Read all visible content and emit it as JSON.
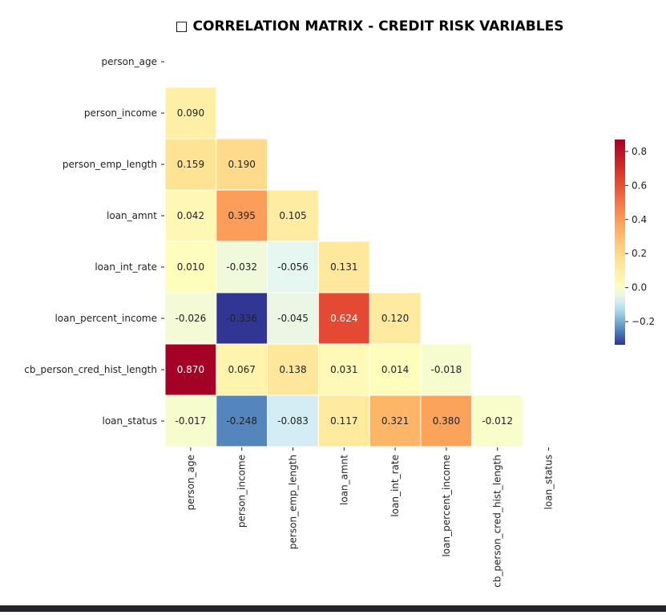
{
  "chart_data": {
    "type": "heatmap",
    "title": "□ CORRELATION MATRIX - CREDIT RISK VARIABLES",
    "variables": [
      "person_age",
      "person_income",
      "person_emp_length",
      "loan_amnt",
      "loan_int_rate",
      "loan_percent_income",
      "cb_person_cred_hist_length",
      "loan_status"
    ],
    "mask": "upper-triangle-including-diagonal",
    "values": [
      [
        null,
        null,
        null,
        null,
        null,
        null,
        null,
        null
      ],
      [
        0.09,
        null,
        null,
        null,
        null,
        null,
        null,
        null
      ],
      [
        0.159,
        0.19,
        null,
        null,
        null,
        null,
        null,
        null
      ],
      [
        0.042,
        0.395,
        0.105,
        null,
        null,
        null,
        null,
        null
      ],
      [
        0.01,
        -0.032,
        -0.056,
        0.131,
        null,
        null,
        null,
        null
      ],
      [
        -0.026,
        -0.336,
        -0.045,
        0.624,
        0.12,
        null,
        null,
        null
      ],
      [
        0.87,
        0.067,
        0.138,
        0.031,
        0.014,
        -0.018,
        null,
        null
      ],
      [
        -0.017,
        -0.248,
        -0.083,
        0.117,
        0.321,
        0.38,
        -0.012,
        null
      ]
    ],
    "value_labels": [
      [
        null,
        null,
        null,
        null,
        null,
        null,
        null,
        null
      ],
      [
        "0.090",
        null,
        null,
        null,
        null,
        null,
        null,
        null
      ],
      [
        "0.159",
        "0.190",
        null,
        null,
        null,
        null,
        null,
        null
      ],
      [
        "0.042",
        "0.395",
        "0.105",
        null,
        null,
        null,
        null,
        null
      ],
      [
        "0.010",
        "-0.032",
        "-0.056",
        "0.131",
        null,
        null,
        null,
        null
      ],
      [
        "-0.026",
        "-0.336",
        "-0.045",
        "0.624",
        "0.120",
        null,
        null,
        null
      ],
      [
        "0.870",
        "0.067",
        "0.138",
        "0.031",
        "0.014",
        "-0.018",
        null,
        null
      ],
      [
        "-0.017",
        "-0.248",
        "-0.083",
        "0.117",
        "0.321",
        "0.380",
        "-0.012",
        null
      ]
    ],
    "colormap": "RdYlBu_r",
    "color_range": [
      -0.336,
      0.87
    ],
    "colorbar": {
      "ticks": [
        0.8,
        0.6,
        0.4,
        0.2,
        0.0,
        -0.2
      ],
      "tick_labels": [
        "0.8",
        "0.6",
        "0.4",
        "0.2",
        "0.0",
        "−0.2"
      ]
    },
    "grid": false
  }
}
